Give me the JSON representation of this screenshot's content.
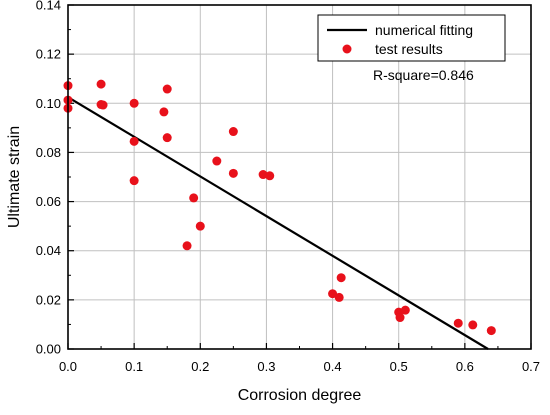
{
  "chart_data": {
    "type": "scatter",
    "xlabel": "Corrosion degree",
    "ylabel": "Ultimate strain",
    "xlim": [
      0.0,
      0.7
    ],
    "ylim": [
      0.0,
      0.14
    ],
    "x_ticks": [
      "0.0",
      "0.1",
      "0.2",
      "0.3",
      "0.4",
      "0.5",
      "0.6",
      "0.7"
    ],
    "y_ticks": [
      "0.00",
      "0.02",
      "0.04",
      "0.06",
      "0.08",
      "0.10",
      "0.12",
      "0.14"
    ],
    "grid": true,
    "legend_position": "top-right",
    "annotation": "R-square=0.846",
    "series": [
      {
        "name": "numerical fitting",
        "kind": "line",
        "color": "#000000",
        "x": [
          0.0,
          0.635
        ],
        "y": [
          0.1025,
          0.0
        ]
      },
      {
        "name": "test results",
        "kind": "scatter",
        "color": "#e8111b",
        "x": [
          0.0,
          0.0,
          0.0,
          0.05,
          0.05,
          0.053,
          0.1,
          0.1,
          0.1,
          0.145,
          0.15,
          0.15,
          0.18,
          0.19,
          0.2,
          0.225,
          0.25,
          0.25,
          0.295,
          0.305,
          0.4,
          0.41,
          0.413,
          0.5,
          0.502,
          0.51,
          0.59,
          0.612,
          0.64
        ],
        "y": [
          0.1072,
          0.1013,
          0.098,
          0.1078,
          0.0995,
          0.0993,
          0.1,
          0.0845,
          0.0685,
          0.0965,
          0.1058,
          0.086,
          0.042,
          0.0615,
          0.05,
          0.0765,
          0.0885,
          0.0715,
          0.071,
          0.0705,
          0.0225,
          0.021,
          0.029,
          0.015,
          0.0128,
          0.0158,
          0.0105,
          0.0098,
          0.0075
        ]
      }
    ]
  }
}
